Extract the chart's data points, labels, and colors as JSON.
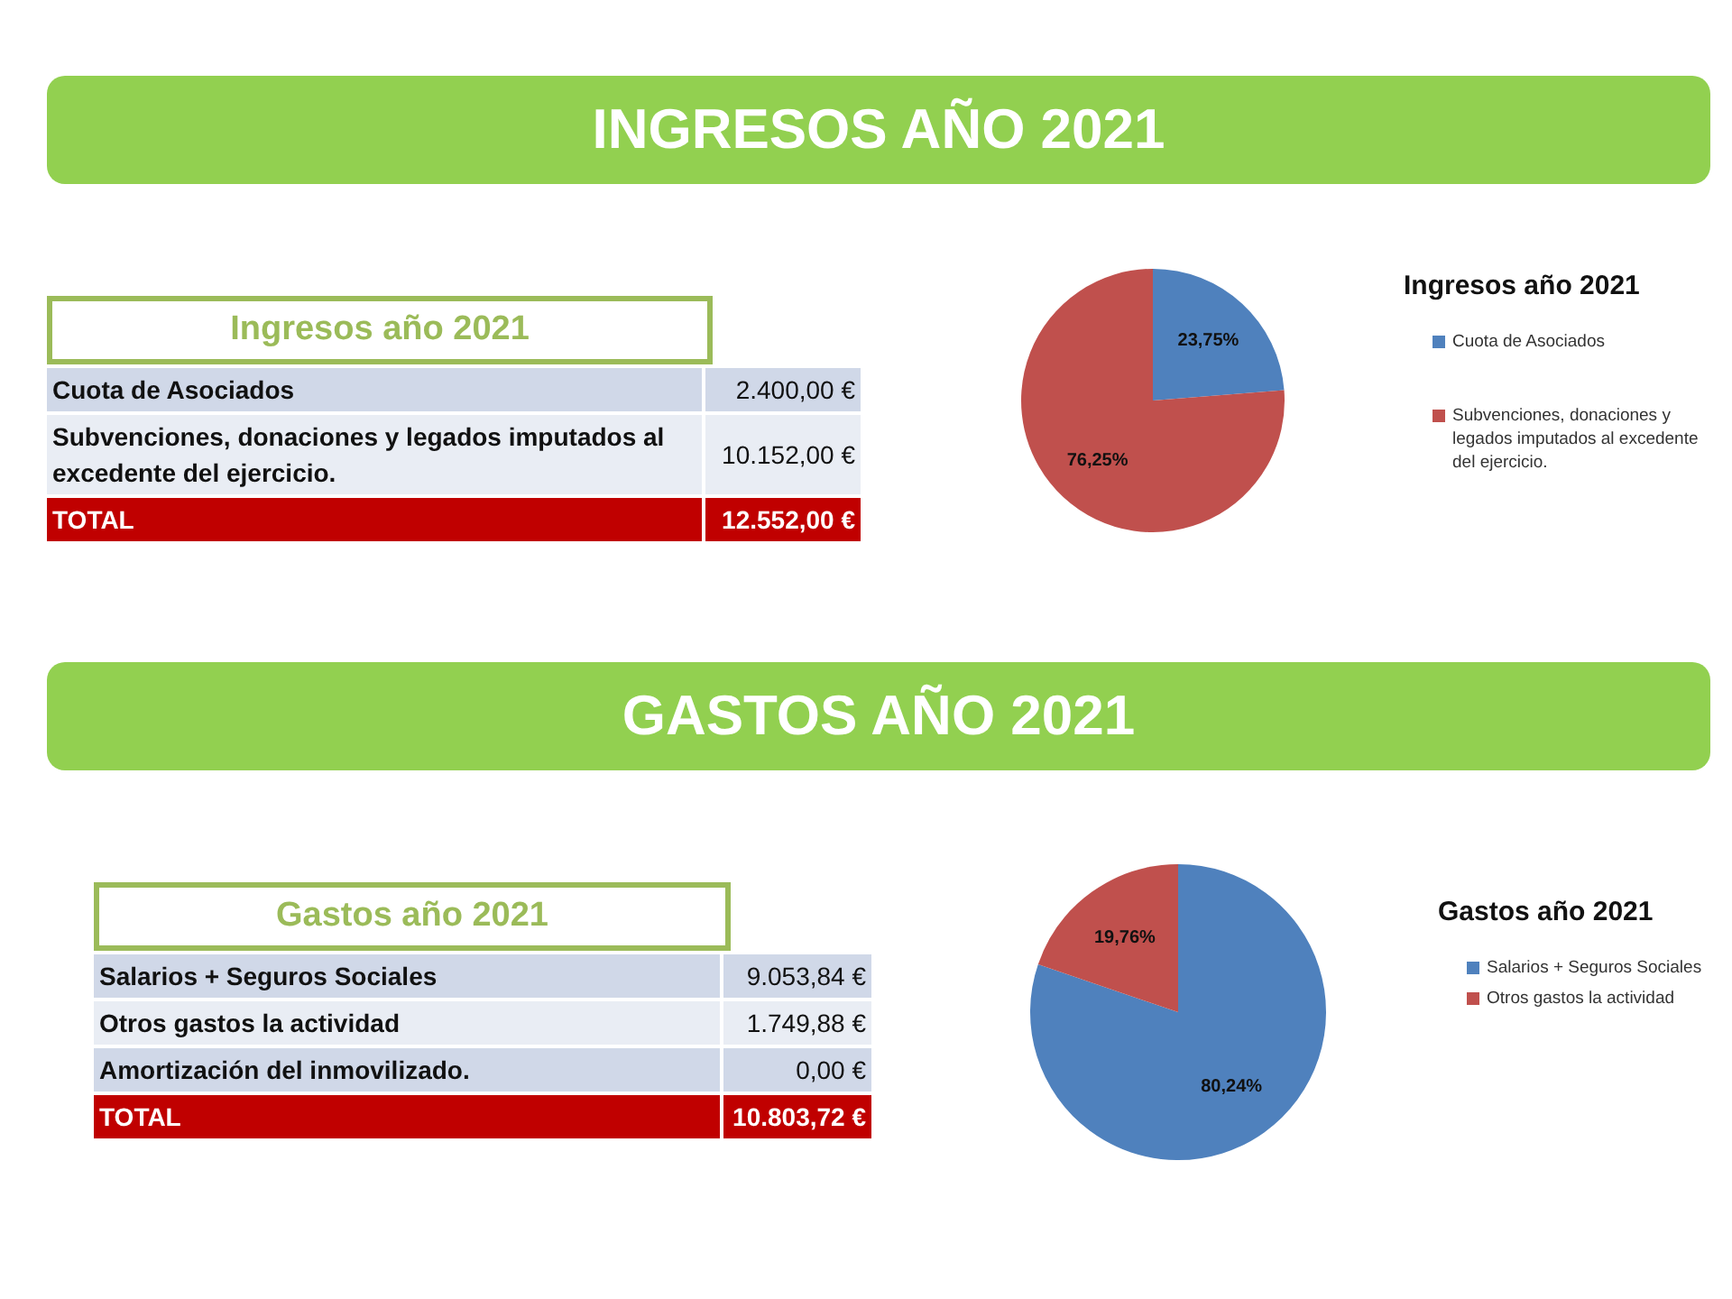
{
  "chart_data": [
    {
      "type": "other",
      "title": "INGRESOS AÑO 2021"
    },
    {
      "type": "other",
      "title": "Ingresos año 2021",
      "categories": [
        "Cuota de Asociados",
        "Subvenciones, donaciones y legados imputados al excedente del ejercicio."
      ],
      "values": [
        2400,
        10152
      ],
      "value_labels": [
        "2.400,00 €",
        "10.152,00 €"
      ],
      "annotations": [
        "TOTAL"
      ],
      "totals": [
        "12.552,00 €"
      ]
    },
    {
      "type": "pie",
      "title": "Ingresos año 2021",
      "categories": [
        "Cuota de Asociados",
        "Subvenciones, donaciones y legados imputados al excedente del ejercicio."
      ],
      "values": [
        23.75,
        76.25
      ],
      "colors": [
        "#4f81bd",
        "#c0504d"
      ],
      "value_labels": [
        "23,75%",
        "76,25%"
      ],
      "legend": "right"
    },
    {
      "type": "other",
      "title": "GASTOS AÑO 2021"
    },
    {
      "type": "other",
      "title": "Gastos año 2021",
      "categories": [
        "Salarios + Seguros Sociales",
        "Otros gastos la actividad",
        "Amortización del inmovilizado."
      ],
      "values": [
        9053.84,
        1749.88,
        0
      ],
      "value_labels": [
        "9.053,84 €",
        "1.749,88 €",
        "0,00 €"
      ],
      "annotations": [
        "TOTAL"
      ],
      "totals": [
        "10.803,72 €"
      ]
    },
    {
      "type": "pie",
      "title": "Gastos año 2021",
      "categories": [
        "Salarios + Seguros Sociales",
        "Otros gastos la actividad"
      ],
      "values": [
        80.24,
        19.76
      ],
      "colors": [
        "#4f81bd",
        "#c0504d"
      ],
      "value_labels": [
        "80,24%",
        "19,76%"
      ],
      "legend": "right"
    }
  ]
}
